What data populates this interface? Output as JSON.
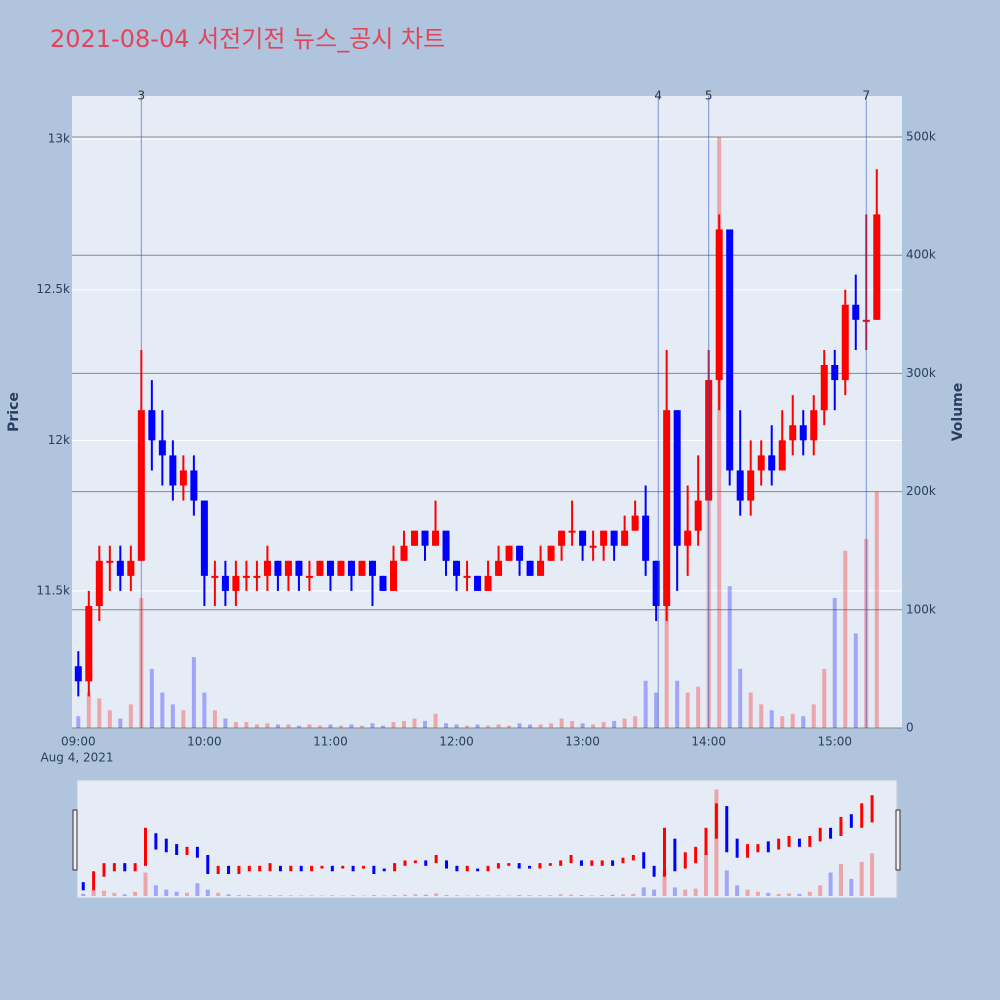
{
  "chart_data": {
    "type": "candlestick",
    "title": "2021-08-04 서전기전 뉴스_공시 차트",
    "y_label": "Price",
    "y2_label": "Volume",
    "x": [
      "2021-08-04 09:00",
      "2021-08-04 09:05",
      "2021-08-04 09:10",
      "2021-08-04 09:15",
      "2021-08-04 09:20",
      "2021-08-04 09:25",
      "2021-08-04 09:30",
      "2021-08-04 09:35",
      "2021-08-04 09:40",
      "2021-08-04 09:45",
      "2021-08-04 09:50",
      "2021-08-04 09:55",
      "2021-08-04 10:00",
      "2021-08-04 10:05",
      "2021-08-04 10:10",
      "2021-08-04 10:15",
      "2021-08-04 10:20",
      "2021-08-04 10:25",
      "2021-08-04 10:30",
      "2021-08-04 10:35",
      "2021-08-04 10:40",
      "2021-08-04 10:45",
      "2021-08-04 10:50",
      "2021-08-04 10:55",
      "2021-08-04 11:00",
      "2021-08-04 11:05",
      "2021-08-04 11:10",
      "2021-08-04 11:15",
      "2021-08-04 11:20",
      "2021-08-04 11:25",
      "2021-08-04 11:30",
      "2021-08-04 11:35",
      "2021-08-04 11:40",
      "2021-08-04 11:45",
      "2021-08-04 11:50",
      "2021-08-04 11:55",
      "2021-08-04 12:00",
      "2021-08-04 12:05",
      "2021-08-04 12:10",
      "2021-08-04 12:15",
      "2021-08-04 12:20",
      "2021-08-04 12:25",
      "2021-08-04 12:30",
      "2021-08-04 12:35",
      "2021-08-04 12:40",
      "2021-08-04 12:45",
      "2021-08-04 12:50",
      "2021-08-04 12:55",
      "2021-08-04 13:00",
      "2021-08-04 13:05",
      "2021-08-04 13:10",
      "2021-08-04 13:15",
      "2021-08-04 13:20",
      "2021-08-04 13:25",
      "2021-08-04 13:30",
      "2021-08-04 13:35",
      "2021-08-04 13:40",
      "2021-08-04 13:45",
      "2021-08-04 13:50",
      "2021-08-04 13:55",
      "2021-08-04 14:00",
      "2021-08-04 14:05",
      "2021-08-04 14:10",
      "2021-08-04 14:15",
      "2021-08-04 14:20",
      "2021-08-04 14:25",
      "2021-08-04 14:30",
      "2021-08-04 14:35",
      "2021-08-04 14:40",
      "2021-08-04 14:45",
      "2021-08-04 14:50",
      "2021-08-04 14:55",
      "2021-08-04 15:00",
      "2021-08-04 15:05",
      "2021-08-04 15:10",
      "2021-08-04 15:15",
      "2021-08-04 15:20"
    ],
    "open": [
      11250,
      11200,
      11450,
      11600,
      11600,
      11550,
      11600,
      12100,
      12000,
      11950,
      11850,
      11900,
      11800,
      11550,
      11550,
      11500,
      11550,
      11550,
      11550,
      11600,
      11550,
      11600,
      11550,
      11550,
      11600,
      11550,
      11600,
      11550,
      11600,
      11550,
      11500,
      11600,
      11650,
      11700,
      11650,
      11700,
      11600,
      11550,
      11550,
      11500,
      11550,
      11600,
      11650,
      11600,
      11550,
      11600,
      11650,
      11700,
      11700,
      11650,
      11650,
      11700,
      11650,
      11700,
      11750,
      11600,
      11450,
      12100,
      11650,
      11700,
      11800,
      12200,
      12700,
      11900,
      11800,
      11900,
      11950,
      11900,
      12000,
      12050,
      12000,
      12100,
      12250,
      12200,
      12450,
      12400,
      12400
    ],
    "high": [
      11300,
      11500,
      11650,
      11650,
      11650,
      11650,
      12300,
      12200,
      12100,
      12000,
      11950,
      11950,
      11800,
      11600,
      11600,
      11600,
      11600,
      11600,
      11650,
      11600,
      11600,
      11600,
      11600,
      11600,
      11600,
      11600,
      11600,
      11600,
      11600,
      11550,
      11650,
      11700,
      11700,
      11700,
      11800,
      11700,
      11600,
      11600,
      11550,
      11600,
      11650,
      11650,
      11650,
      11600,
      11650,
      11650,
      11700,
      11800,
      11700,
      11700,
      11700,
      11700,
      11750,
      11800,
      11850,
      11600,
      12300,
      12100,
      11850,
      11950,
      12300,
      12750,
      12700,
      12100,
      12000,
      12000,
      12050,
      12100,
      12150,
      12100,
      12150,
      12300,
      12300,
      12500,
      12550,
      12750,
      12900
    ],
    "low": [
      11150,
      11150,
      11400,
      11500,
      11500,
      11500,
      11600,
      11900,
      11850,
      11800,
      11800,
      11750,
      11450,
      11450,
      11450,
      11450,
      11500,
      11500,
      11500,
      11500,
      11500,
      11500,
      11500,
      11550,
      11500,
      11550,
      11500,
      11550,
      11450,
      11500,
      11500,
      11600,
      11650,
      11600,
      11650,
      11550,
      11500,
      11500,
      11500,
      11500,
      11550,
      11600,
      11550,
      11550,
      11550,
      11600,
      11600,
      11650,
      11600,
      11600,
      11600,
      11600,
      11650,
      11700,
      11550,
      11400,
      11400,
      11500,
      11550,
      11650,
      11800,
      12100,
      11850,
      11750,
      11750,
      11850,
      11850,
      11900,
      11950,
      11950,
      11950,
      12050,
      12100,
      12150,
      12300,
      12300,
      12400
    ],
    "close": [
      11200,
      11450,
      11600,
      11600,
      11550,
      11600,
      12100,
      12000,
      11950,
      11850,
      11900,
      11800,
      11550,
      11550,
      11500,
      11550,
      11550,
      11550,
      11600,
      11550,
      11600,
      11550,
      11550,
      11600,
      11550,
      11600,
      11550,
      11600,
      11550,
      11500,
      11600,
      11650,
      11700,
      11650,
      11700,
      11600,
      11550,
      11550,
      11500,
      11550,
      11600,
      11650,
      11600,
      11550,
      11600,
      11650,
      11700,
      11700,
      11650,
      11650,
      11700,
      11650,
      11700,
      11750,
      11600,
      11450,
      12100,
      11650,
      11700,
      11800,
      12200,
      12700,
      11900,
      11800,
      11900,
      11950,
      11900,
      12000,
      12050,
      12000,
      12100,
      12250,
      12200,
      12450,
      12400,
      12400,
      12750
    ],
    "volume": [
      10000,
      30000,
      25000,
      15000,
      8000,
      20000,
      110000,
      50000,
      30000,
      20000,
      15000,
      60000,
      30000,
      15000,
      8000,
      5000,
      5000,
      3000,
      4000,
      3000,
      3000,
      2000,
      3000,
      2000,
      3000,
      2000,
      3000,
      2000,
      4000,
      2000,
      5000,
      6000,
      8000,
      6000,
      12000,
      4000,
      3000,
      2000,
      3000,
      2000,
      3000,
      2000,
      4000,
      3000,
      3000,
      4000,
      8000,
      6000,
      4000,
      3000,
      5000,
      6000,
      8000,
      10000,
      40000,
      30000,
      120000,
      40000,
      30000,
      35000,
      200000,
      500000,
      120000,
      50000,
      30000,
      20000,
      15000,
      10000,
      12000,
      10000,
      20000,
      50000,
      110000,
      150000,
      80000,
      160000,
      200000
    ],
    "increasing_color": "#ff0000",
    "decreasing_color": "#0000ff",
    "xlim": [
      "2021-08-04 08:57",
      "2021-08-04 15:32"
    ],
    "xticks": [
      {
        "value": "2021-08-04 09:00",
        "label": "09:00"
      },
      {
        "value": "2021-08-04 10:00",
        "label": "10:00"
      },
      {
        "value": "2021-08-04 11:00",
        "label": "11:00"
      },
      {
        "value": "2021-08-04 12:00",
        "label": "12:00"
      },
      {
        "value": "2021-08-04 13:00",
        "label": "13:00"
      },
      {
        "value": "2021-08-04 14:00",
        "label": "14:00"
      },
      {
        "value": "2021-08-04 15:00",
        "label": "15:00"
      }
    ],
    "x_date_label": "Aug 4, 2021",
    "ylim": [
      11045,
      13143
    ],
    "yticks": [
      {
        "value": 11500,
        "label": "11.5k"
      },
      {
        "value": 12000,
        "label": "12k"
      },
      {
        "value": 12500,
        "label": "12.5k"
      },
      {
        "value": 13000,
        "label": "13k"
      }
    ],
    "y2lim": [
      0,
      534700
    ],
    "y2ticks": [
      0,
      {
        "value": 100000,
        "label": "100k"
      },
      {
        "value": 200000,
        "label": "200k"
      },
      {
        "value": 300000,
        "label": "300k"
      },
      {
        "value": 400000,
        "label": "400k"
      },
      {
        "value": 500000,
        "label": "500k"
      }
    ],
    "news": [
      {
        "x": "2021-08-04 09:30",
        "label": "3"
      },
      {
        "x": "2021-08-04 13:36",
        "label": "4"
      },
      {
        "x": "2021-08-04 14:00",
        "label": "5"
      },
      {
        "x": "2021-08-04 15:15",
        "label": "7"
      }
    ]
  }
}
